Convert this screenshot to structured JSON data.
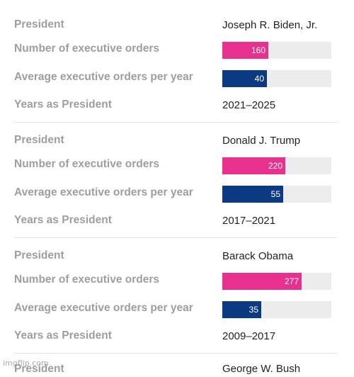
{
  "chart_data": {
    "type": "bar",
    "fields": {
      "president": "President",
      "orders": "Number of executive orders",
      "average": "Average executive orders per year",
      "years": "Years as President"
    },
    "records": [
      {
        "president": "Joseph R. Biden, Jr.",
        "orders": 160,
        "average": 40,
        "years": "2021–2025"
      },
      {
        "president": "Donald J. Trump",
        "orders": 220,
        "average": 55,
        "years": "2017–2021"
      },
      {
        "president": "Barack Obama",
        "orders": 277,
        "average": 35,
        "years": "2009–2017"
      }
    ],
    "partial_record": {
      "president_label": "President",
      "president": "George W. Bush"
    },
    "orders_max": 380,
    "average_max": 98,
    "colors": {
      "orders": "#e8318e",
      "average": "#0b3a82",
      "track": "#ececec",
      "label": "#9e9e9e"
    }
  },
  "watermark": "imgflip.com"
}
